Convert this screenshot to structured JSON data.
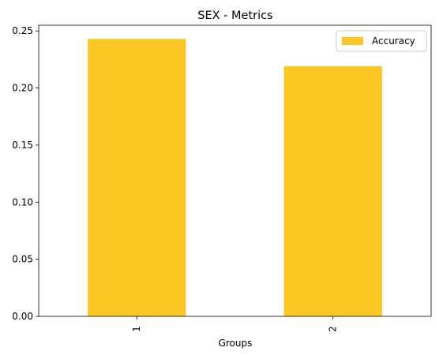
{
  "chart_data": {
    "type": "bar",
    "title": "SEX - Metrics",
    "xlabel": "Groups",
    "ylabel": "",
    "categories": [
      "1",
      "2"
    ],
    "series": [
      {
        "name": "Accuracy",
        "values": [
          0.243,
          0.219
        ],
        "color": "#fdc524"
      }
    ],
    "ylim": [
      0,
      0.255
    ],
    "yticks": [
      0.0,
      0.05,
      0.1,
      0.15,
      0.2,
      0.25
    ],
    "ytick_labels": [
      "0.00",
      "0.05",
      "0.10",
      "0.15",
      "0.20",
      "0.25"
    ],
    "xtick_rotation": "vertical",
    "grid": false,
    "legend_position": "top-right"
  }
}
